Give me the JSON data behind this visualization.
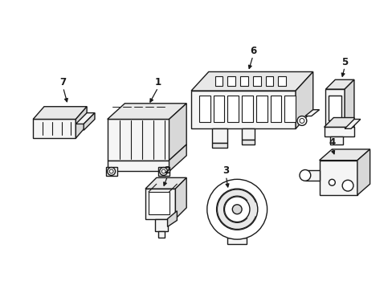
{
  "background_color": "#ffffff",
  "line_color": "#1a1a1a",
  "line_width": 1.0,
  "fig_width": 4.89,
  "fig_height": 3.6,
  "font_size": 8.5
}
